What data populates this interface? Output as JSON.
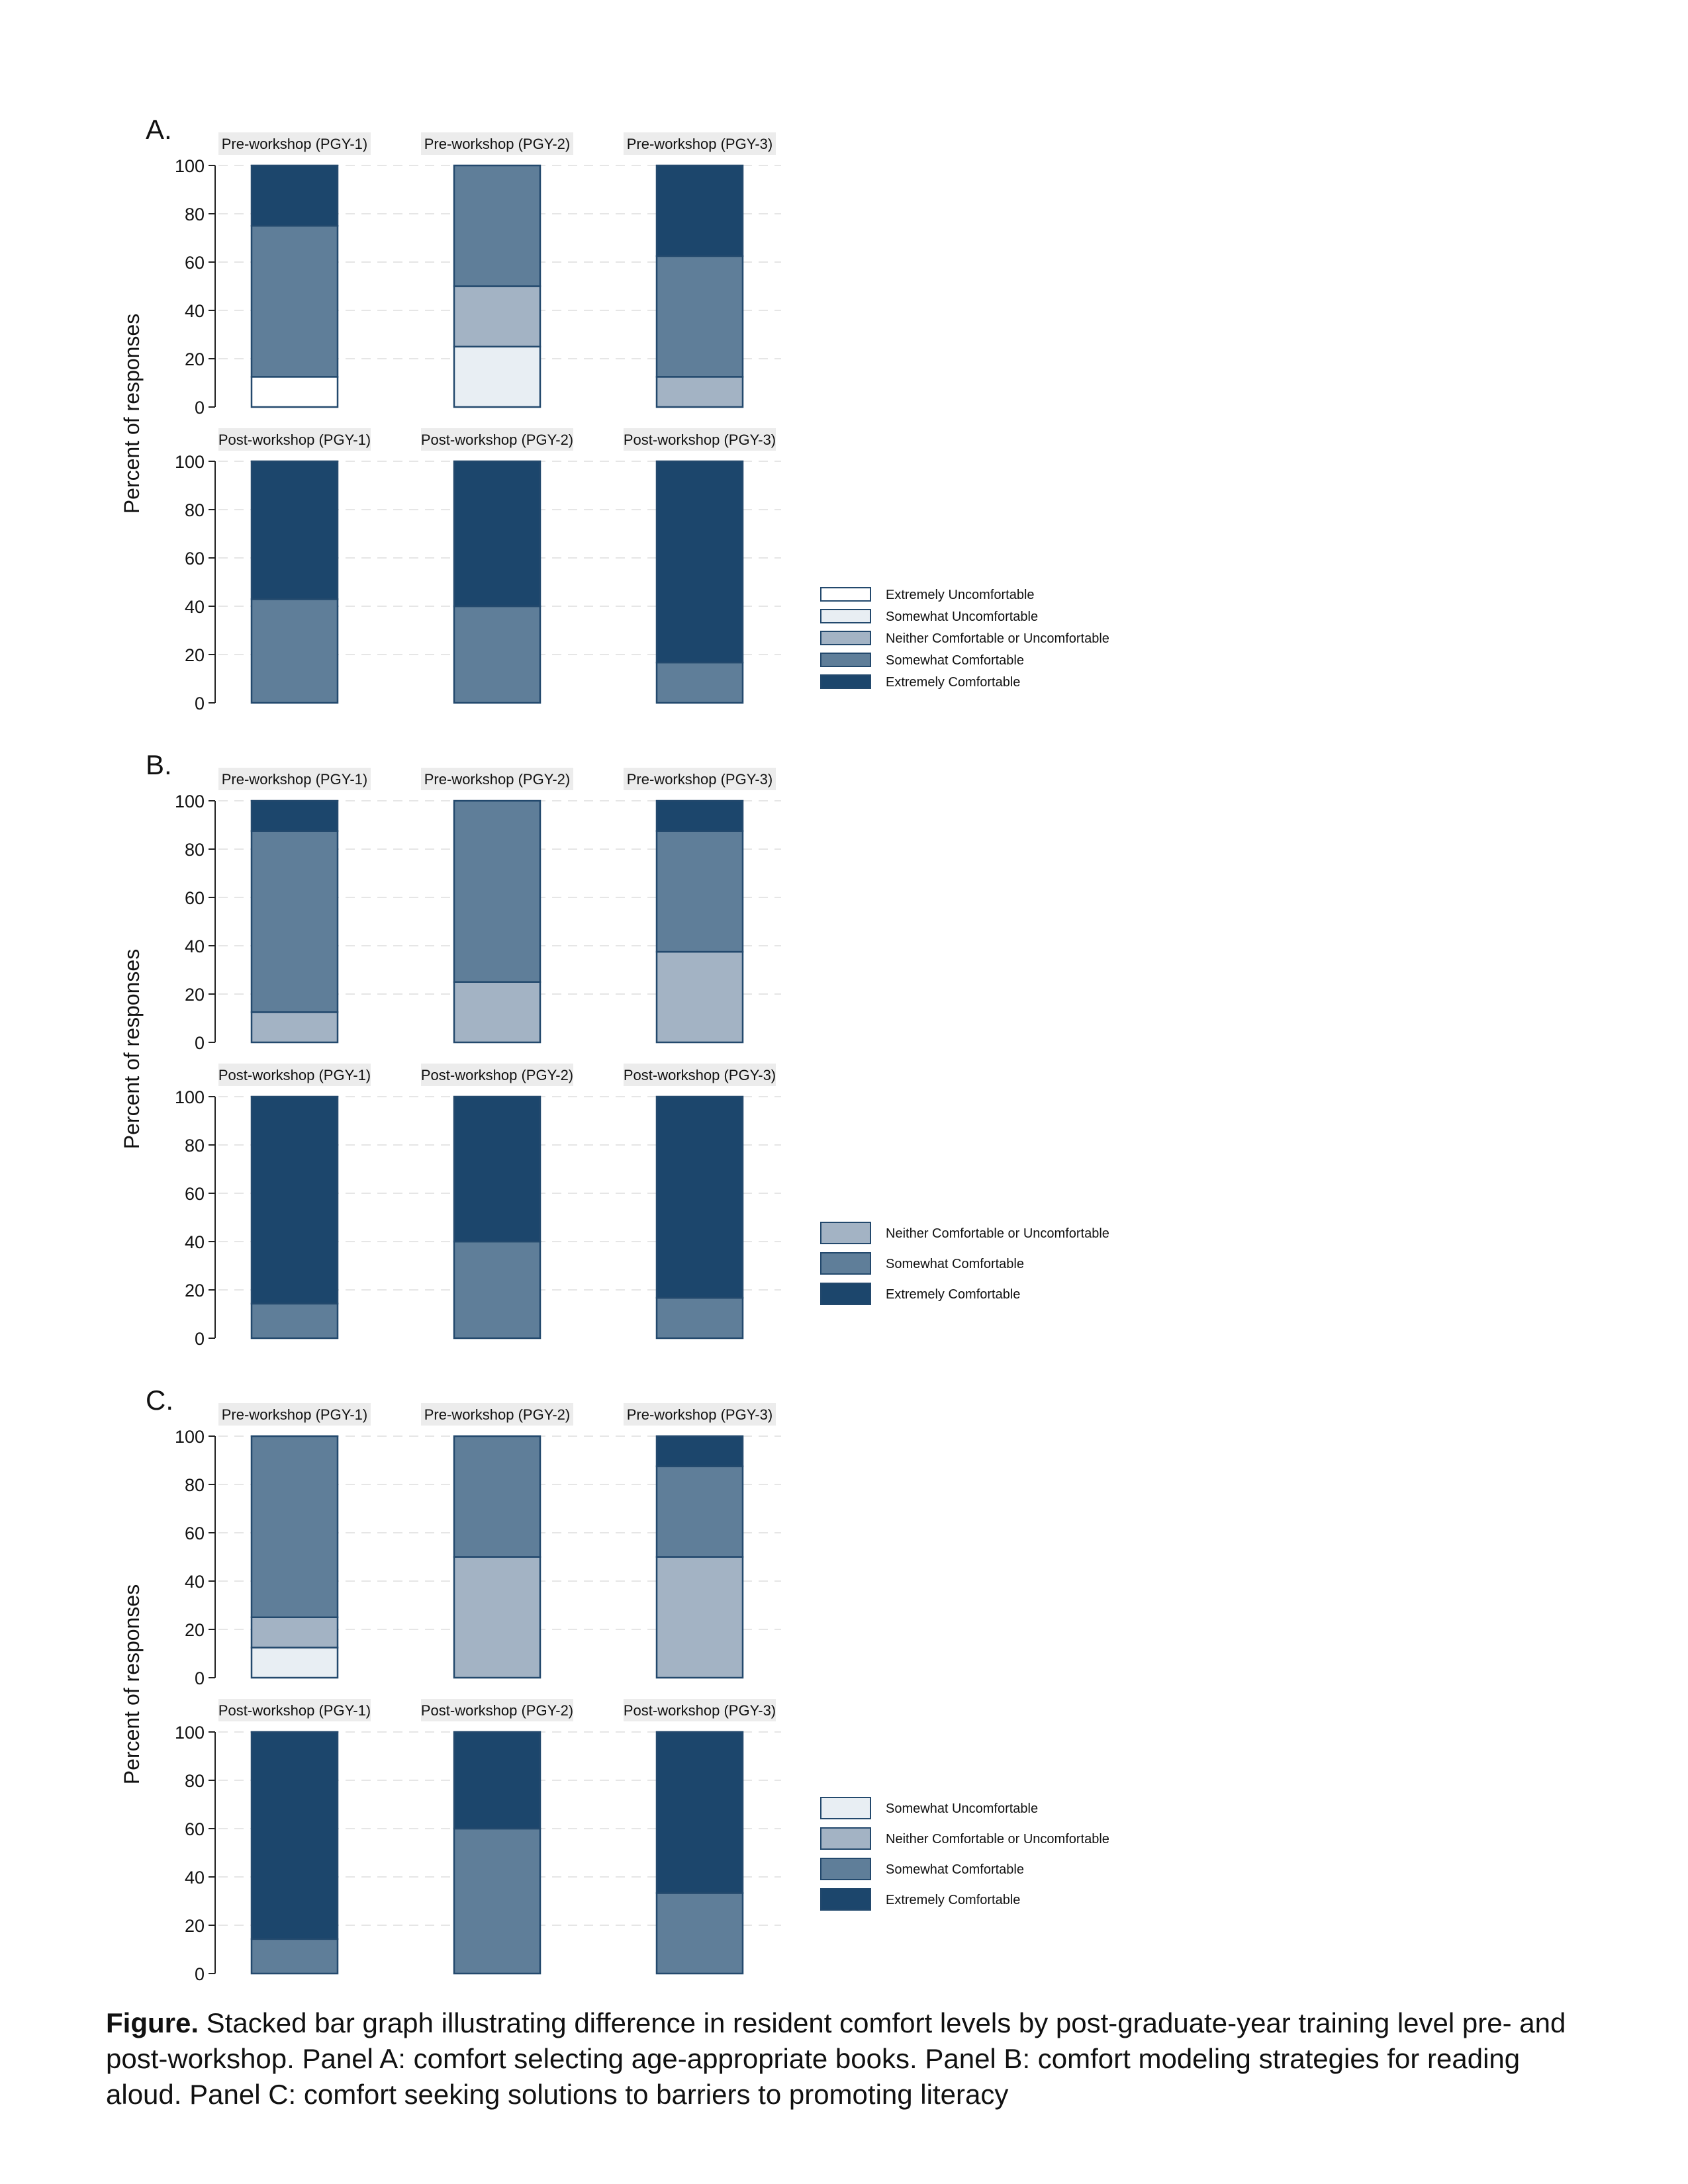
{
  "colors": {
    "Extremely Uncomfortable": "#ffffff",
    "Somewhat Uncomfortable": "#e8eef3",
    "Neither Comfortable or Uncomfortable": "#a3b3c4",
    "Somewhat Comfortable": "#5f7e99",
    "Extremely Comfortable": "#1c466c",
    "bar_outline": "#23496d",
    "facet_header": "#ececec",
    "gridline": "#e6e6e6"
  },
  "chart_data": [
    {
      "type": "bar",
      "stacked": true,
      "panel_label": "A.",
      "ylabel": "Percent of responses",
      "ylim": [
        0,
        100
      ],
      "yticks": [
        0,
        20,
        40,
        60,
        80,
        100
      ],
      "grid": true,
      "legend_position": "right",
      "legend": [
        "Extremely Uncomfortable",
        "Somewhat Uncomfortable",
        "Neither Comfortable or Uncomfortable",
        "Somewhat Comfortable",
        "Extremely Comfortable"
      ],
      "facets": [
        {
          "title": "Pre-workshop (PGY-1)",
          "segments": [
            {
              "cat": "Extremely Uncomfortable",
              "value": 12.5
            },
            {
              "cat": "Somewhat Comfortable",
              "value": 62.5
            },
            {
              "cat": "Extremely Comfortable",
              "value": 25
            }
          ]
        },
        {
          "title": "Pre-workshop (PGY-2)",
          "segments": [
            {
              "cat": "Somewhat Uncomfortable",
              "value": 25
            },
            {
              "cat": "Neither Comfortable or Uncomfortable",
              "value": 25
            },
            {
              "cat": "Somewhat Comfortable",
              "value": 50
            }
          ]
        },
        {
          "title": "Pre-workshop (PGY-3)",
          "segments": [
            {
              "cat": "Neither Comfortable or Uncomfortable",
              "value": 12.5
            },
            {
              "cat": "Somewhat Comfortable",
              "value": 50
            },
            {
              "cat": "Extremely Comfortable",
              "value": 37.5
            }
          ]
        },
        {
          "title": "Post-workshop (PGY-1)",
          "segments": [
            {
              "cat": "Somewhat Comfortable",
              "value": 42.9
            },
            {
              "cat": "Extremely Comfortable",
              "value": 57.1
            }
          ]
        },
        {
          "title": "Post-workshop (PGY-2)",
          "segments": [
            {
              "cat": "Somewhat Comfortable",
              "value": 40
            },
            {
              "cat": "Extremely Comfortable",
              "value": 60
            }
          ]
        },
        {
          "title": "Post-workshop (PGY-3)",
          "segments": [
            {
              "cat": "Somewhat Comfortable",
              "value": 16.7
            },
            {
              "cat": "Extremely Comfortable",
              "value": 83.3
            }
          ]
        }
      ]
    },
    {
      "type": "bar",
      "stacked": true,
      "panel_label": "B.",
      "ylabel": "Percent of responses",
      "ylim": [
        0,
        100
      ],
      "yticks": [
        0,
        20,
        40,
        60,
        80,
        100
      ],
      "grid": true,
      "legend_position": "right",
      "legend": [
        "Neither Comfortable or Uncomfortable",
        "Somewhat Comfortable",
        "Extremely Comfortable"
      ],
      "facets": [
        {
          "title": "Pre-workshop (PGY-1)",
          "segments": [
            {
              "cat": "Neither Comfortable or Uncomfortable",
              "value": 12.5
            },
            {
              "cat": "Somewhat Comfortable",
              "value": 75
            },
            {
              "cat": "Extremely Comfortable",
              "value": 12.5
            }
          ]
        },
        {
          "title": "Pre-workshop (PGY-2)",
          "segments": [
            {
              "cat": "Neither Comfortable or Uncomfortable",
              "value": 25
            },
            {
              "cat": "Somewhat Comfortable",
              "value": 75
            }
          ]
        },
        {
          "title": "Pre-workshop (PGY-3)",
          "segments": [
            {
              "cat": "Neither Comfortable or Uncomfortable",
              "value": 37.5
            },
            {
              "cat": "Somewhat Comfortable",
              "value": 50
            },
            {
              "cat": "Extremely Comfortable",
              "value": 12.5
            }
          ]
        },
        {
          "title": "Post-workshop (PGY-1)",
          "segments": [
            {
              "cat": "Somewhat Comfortable",
              "value": 14.3
            },
            {
              "cat": "Extremely Comfortable",
              "value": 85.7
            }
          ]
        },
        {
          "title": "Post-workshop (PGY-2)",
          "segments": [
            {
              "cat": "Somewhat Comfortable",
              "value": 40
            },
            {
              "cat": "Extremely Comfortable",
              "value": 60
            }
          ]
        },
        {
          "title": "Post-workshop (PGY-3)",
          "segments": [
            {
              "cat": "Somewhat Comfortable",
              "value": 16.7
            },
            {
              "cat": "Extremely Comfortable",
              "value": 83.3
            }
          ]
        }
      ]
    },
    {
      "type": "bar",
      "stacked": true,
      "panel_label": "C.",
      "ylabel": "Percent of responses",
      "ylim": [
        0,
        100
      ],
      "yticks": [
        0,
        20,
        40,
        60,
        80,
        100
      ],
      "grid": true,
      "legend_position": "right",
      "legend": [
        "Somewhat Uncomfortable",
        "Neither Comfortable or Uncomfortable",
        "Somewhat Comfortable",
        "Extremely Comfortable"
      ],
      "facets": [
        {
          "title": "Pre-workshop (PGY-1)",
          "segments": [
            {
              "cat": "Somewhat Uncomfortable",
              "value": 12.5
            },
            {
              "cat": "Neither Comfortable or Uncomfortable",
              "value": 12.5
            },
            {
              "cat": "Somewhat Comfortable",
              "value": 75
            }
          ]
        },
        {
          "title": "Pre-workshop (PGY-2)",
          "segments": [
            {
              "cat": "Neither Comfortable or Uncomfortable",
              "value": 50
            },
            {
              "cat": "Somewhat Comfortable",
              "value": 50
            }
          ]
        },
        {
          "title": "Pre-workshop (PGY-3)",
          "segments": [
            {
              "cat": "Neither Comfortable or Uncomfortable",
              "value": 50
            },
            {
              "cat": "Somewhat Comfortable",
              "value": 37.5
            },
            {
              "cat": "Extremely Comfortable",
              "value": 12.5
            }
          ]
        },
        {
          "title": "Post-workshop (PGY-1)",
          "segments": [
            {
              "cat": "Somewhat Comfortable",
              "value": 14.3
            },
            {
              "cat": "Extremely Comfortable",
              "value": 85.7
            }
          ]
        },
        {
          "title": "Post-workshop (PGY-2)",
          "segments": [
            {
              "cat": "Somewhat Comfortable",
              "value": 60
            },
            {
              "cat": "Extremely Comfortable",
              "value": 40
            }
          ]
        },
        {
          "title": "Post-workshop (PGY-3)",
          "segments": [
            {
              "cat": "Somewhat Comfortable",
              "value": 33.3
            },
            {
              "cat": "Extremely Comfortable",
              "value": 66.7
            }
          ]
        }
      ]
    }
  ],
  "caption": {
    "lead": "Figure.",
    "text": " Stacked bar graph illustrating difference in resident comfort levels by post-graduate-year training level pre- and post-workshop. Panel A: comfort selecting age-appropriate books. Panel B: comfort modeling strategies for reading aloud. Panel C: comfort seeking solutions to barriers to promoting literacy"
  }
}
